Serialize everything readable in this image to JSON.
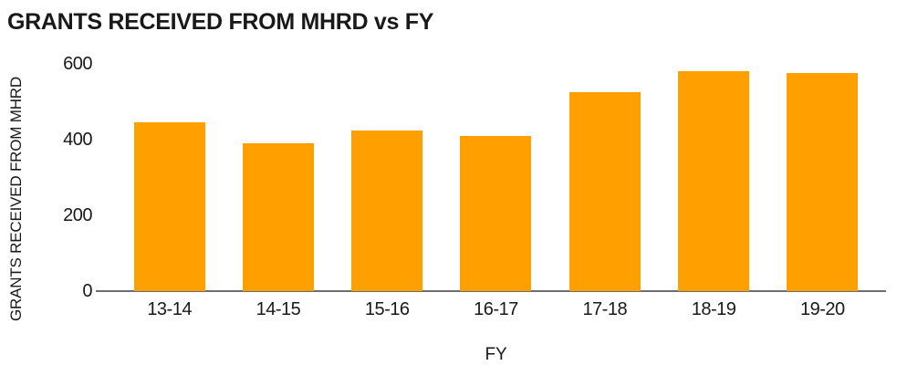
{
  "page": {
    "background": "#FFFFFF"
  },
  "chart_data": {
    "type": "bar",
    "title": "GRANTS RECEIVED FROM MHRD vs FY",
    "xlabel": "FY",
    "ylabel": "GRANTS RECEIVED FROM MHRD",
    "categories": [
      "13-14",
      "14-15",
      "15-16",
      "16-17",
      "17-18",
      "18-19",
      "19-20"
    ],
    "values": [
      445,
      390,
      425,
      410,
      525,
      580,
      575
    ],
    "yticks": [
      0,
      200,
      400,
      600
    ],
    "ylim": [
      0,
      600
    ],
    "bar_color": "#FFA000",
    "axis_line_color": "#6E6E6E",
    "text_color": "#191919",
    "grid": false,
    "legend": false
  }
}
